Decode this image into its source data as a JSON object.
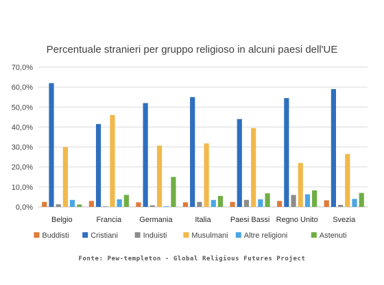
{
  "chart_data": {
    "type": "bar",
    "title": "Percentuale stranieri per gruppo religioso in alcuni paesi dell'UE",
    "categories": [
      "Belgio",
      "Francia",
      "Germania",
      "Italia",
      "Paesi Bassi",
      "Regno Unito",
      "Svezia"
    ],
    "series": [
      {
        "name": "Buddisti",
        "color": "#E07B39",
        "values": [
          2.5,
          3.0,
          2.3,
          2.3,
          2.5,
          3.0,
          3.3
        ]
      },
      {
        "name": "Cristiani",
        "color": "#2E6FBF",
        "values": [
          62.0,
          41.5,
          52.0,
          55.0,
          44.0,
          54.5,
          59.0
        ]
      },
      {
        "name": "Induisti",
        "color": "#8C8C8C",
        "values": [
          1.3,
          0.3,
          0.8,
          2.5,
          3.5,
          6.0,
          1.0
        ]
      },
      {
        "name": "Musulmani",
        "color": "#F2B84B",
        "values": [
          30.0,
          46.0,
          30.7,
          31.8,
          39.5,
          22.0,
          26.5
        ]
      },
      {
        "name": "Altre religioni",
        "color": "#4BA6E3",
        "values": [
          3.5,
          3.8,
          0.3,
          3.5,
          3.8,
          6.3,
          4.0
        ]
      },
      {
        "name": "Astenuti",
        "color": "#6FAE45",
        "values": [
          1.2,
          6.0,
          15.0,
          5.5,
          6.8,
          8.3,
          7.0
        ]
      }
    ],
    "y_ticks": [
      "0,0%",
      "10,0%",
      "20,0%",
      "30,0%",
      "40,0%",
      "50,0%",
      "60,0%",
      "70,0%"
    ],
    "ylim": [
      0,
      70
    ],
    "grid": true,
    "legend_position": "bottom"
  },
  "source": "Fonte: Pew-templeton - Global Religious Futures Project"
}
